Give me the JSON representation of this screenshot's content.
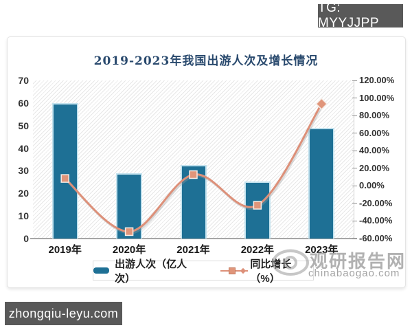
{
  "overlay": {
    "tg_badge": "TG: MYYJJPP",
    "site_badge": "zhongqiu-leyu.com"
  },
  "watermark": {
    "name": "观研报告网",
    "domain": "chinabaogao.com"
  },
  "chart": {
    "title": "2019-2023年我国出游人次及增长情况",
    "legend": [
      {
        "label": "出游人次（亿人次）"
      },
      {
        "label": "同比增长（%）"
      }
    ]
  },
  "chart_data": {
    "type": "bar+line",
    "title": "2019-2023年我国出游人次及增长情况",
    "categories": [
      "2019年",
      "2020年",
      "2021年",
      "2022年",
      "2023年"
    ],
    "series": [
      {
        "name": "出游人次（亿人次）",
        "type": "bar",
        "axis": "left",
        "values": [
          60.1,
          28.8,
          32.5,
          25.3,
          48.9
        ]
      },
      {
        "name": "同比增长（%）",
        "type": "line",
        "axis": "right",
        "values": [
          8.4,
          -52.1,
          12.8,
          -22.1,
          93.3
        ]
      }
    ],
    "left_axis": {
      "min": 0,
      "max": 70,
      "step": 10,
      "ticks": [
        "0",
        "10",
        "20",
        "30",
        "40",
        "50",
        "60",
        "70"
      ]
    },
    "right_axis": {
      "min": -60,
      "max": 120,
      "step": 20,
      "ticks": [
        "-60.00%",
        "-40.00%",
        "-20.00%",
        "0.00%",
        "20.00%",
        "40.00%",
        "60.00%",
        "80.00%",
        "100.00%",
        "120.00%"
      ]
    },
    "legend_position": "bottom",
    "grid": false,
    "plot_background": "diagonal-hatch",
    "colors": {
      "bar": "#1e7095",
      "bar_border": "#c3e2ee",
      "line": "#dd9079",
      "marker": "#e0957a",
      "title": "#2a4a6e"
    }
  }
}
